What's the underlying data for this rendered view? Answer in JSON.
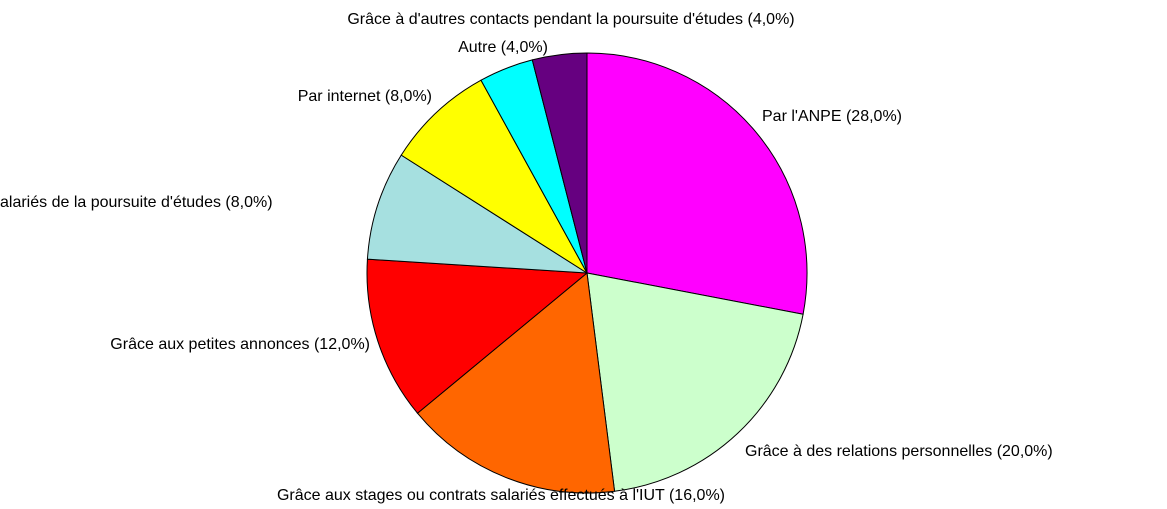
{
  "chart_data": {
    "type": "pie",
    "categories": [
      "Par l'ANPE (28,0%)",
      "Grâce à des relations personnelles (20,0%)",
      "Grâce aux stages ou contrats salariés effectués à l'IUT (16,0%)",
      "Grâce aux petites annonces (12,0%)",
      "alariés de la poursuite d'études (8,0%)",
      "Par internet (8,0%)",
      "Autre (4,0%)",
      "Grâce à d'autres contacts pendant la poursuite d'études (4,0%)"
    ],
    "values": [
      28,
      20,
      16,
      12,
      8,
      8,
      4,
      4
    ],
    "colors": [
      "#ff00ff",
      "#ccffcc",
      "#ff6600",
      "#ff0000",
      "#a6e0e0",
      "#ffff00",
      "#00ffff",
      "#660080"
    ]
  }
}
